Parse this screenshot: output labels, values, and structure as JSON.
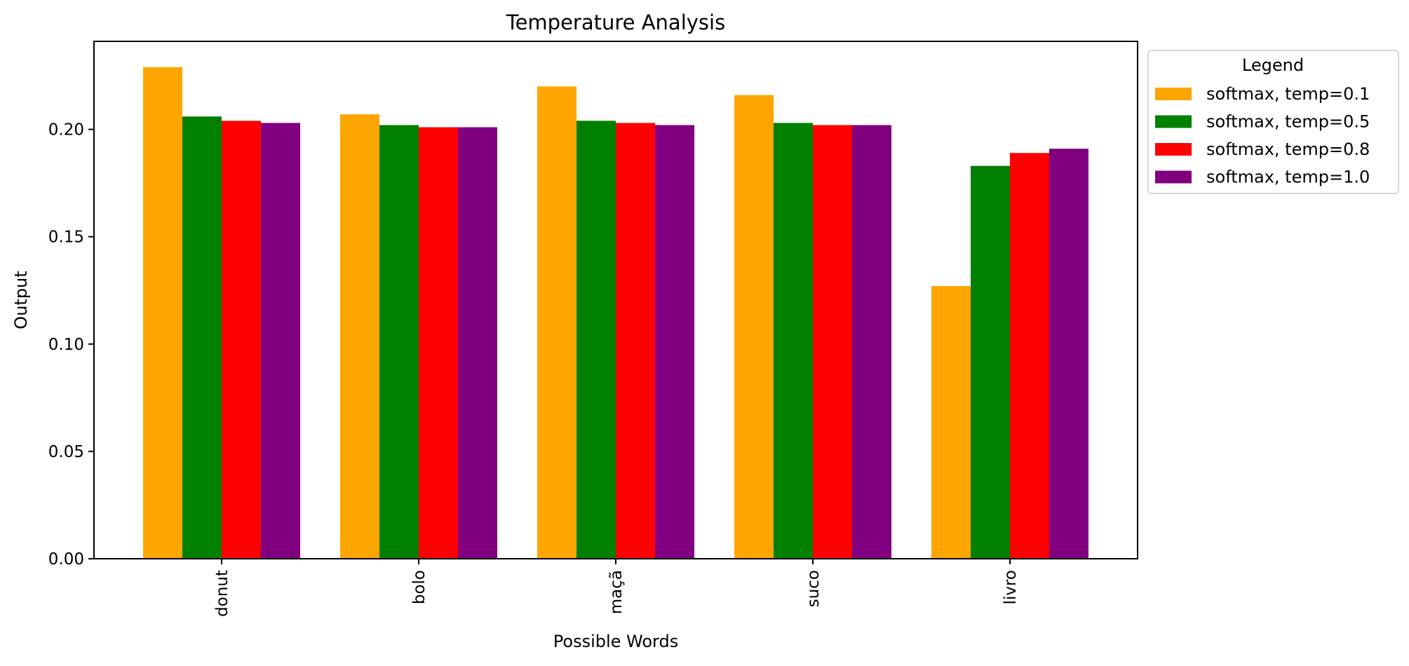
{
  "chart_data": {
    "type": "bar",
    "title": "Temperature Analysis",
    "xlabel": "Possible Words",
    "ylabel": "Output",
    "categories": [
      "donut",
      "bolo",
      "maçã",
      "suco",
      "livro"
    ],
    "ylim": [
      0,
      0.241
    ],
    "yticks": [
      0.0,
      0.05,
      0.1,
      0.15,
      0.2
    ],
    "ytick_labels": [
      "0.00",
      "0.05",
      "0.10",
      "0.15",
      "0.20"
    ],
    "legend_title": "Legend",
    "legend_position": "outside-top-right",
    "grid": false,
    "series": [
      {
        "name": "softmax, temp=0.1",
        "color": "#FFA500",
        "values": [
          0.229,
          0.207,
          0.22,
          0.216,
          0.127
        ]
      },
      {
        "name": "softmax, temp=0.5",
        "color": "#008000",
        "values": [
          0.206,
          0.202,
          0.204,
          0.203,
          0.183
        ]
      },
      {
        "name": "softmax, temp=0.8",
        "color": "#FF0000",
        "values": [
          0.204,
          0.201,
          0.203,
          0.202,
          0.189
        ]
      },
      {
        "name": "softmax, temp=1.0",
        "color": "#800080",
        "values": [
          0.203,
          0.201,
          0.202,
          0.202,
          0.191
        ]
      }
    ]
  }
}
